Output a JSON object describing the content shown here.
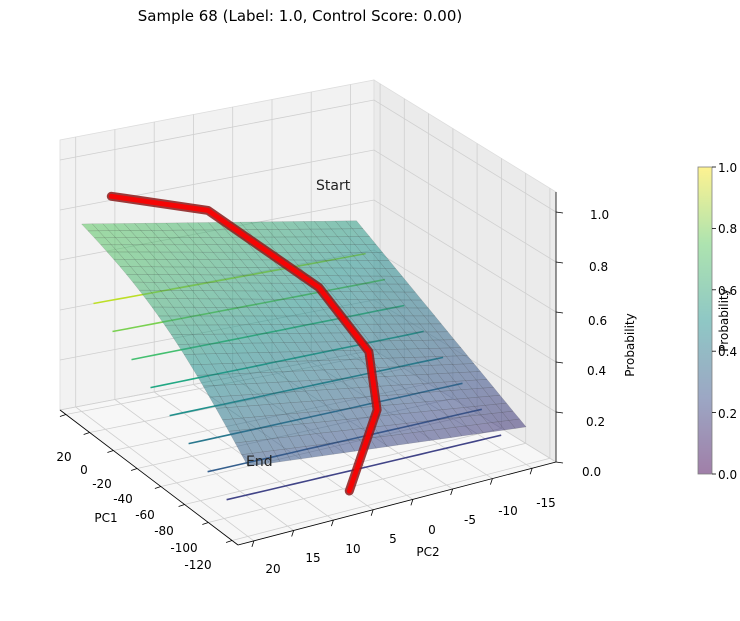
{
  "chart_data": {
    "type": "surface3d",
    "title": "Sample 68 (Label: 1.0, Control Score: 0.00)",
    "x_axis": {
      "label": "PC1",
      "ticks": [
        20,
        0,
        -20,
        -40,
        -60,
        -80,
        -100,
        -120
      ],
      "range": [
        25,
        -125
      ]
    },
    "y_axis": {
      "label": "PC2",
      "ticks": [
        20,
        15,
        10,
        5,
        0,
        -5,
        -10,
        -15
      ],
      "range": [
        22,
        -18
      ]
    },
    "z_axis": {
      "label": "Probability",
      "ticks": [
        "0.0",
        "0.2",
        "0.4",
        "0.6",
        "0.8",
        "1.0"
      ],
      "range": [
        0,
        1
      ]
    },
    "colorbar": {
      "label": "Probability",
      "ticks": [
        "0.0",
        "0.2",
        "0.4",
        "0.6",
        "0.8",
        "1.0"
      ],
      "colormap": "viridis",
      "alpha": 0.5
    },
    "surface_corners": {
      "pc1_at_20_pc2_at_20": 0.75,
      "pc1_at_20_pc2_at_-15": 0.55,
      "pc1_at_-120_pc2_at_20": 0.28,
      "pc1_at_-120_pc2_at_-15": 0.15
    },
    "trajectory": {
      "color": "#ff0000",
      "points": [
        {
          "pc1": -5,
          "pc2": 20,
          "prob": 0.95
        },
        {
          "pc1": -20,
          "pc2": 10,
          "prob": 0.88
        },
        {
          "pc1": -60,
          "pc2": 2,
          "prob": 0.65
        },
        {
          "pc1": -95,
          "pc2": 1,
          "prob": 0.5
        },
        {
          "pc1": -115,
          "pc2": 3,
          "prob": 0.35
        },
        {
          "pc1": -125,
          "pc2": 8,
          "prob": 0.1
        }
      ],
      "start_label": "Start",
      "end_label": "End"
    },
    "contour_lines": [
      {
        "level": 0.85,
        "color": "#bddf26"
      },
      {
        "level": 0.75,
        "color": "#7ad151"
      },
      {
        "level": 0.65,
        "color": "#44bf70"
      },
      {
        "level": 0.55,
        "color": "#22a884"
      },
      {
        "level": 0.45,
        "color": "#21918c"
      },
      {
        "level": 0.35,
        "color": "#2a788e"
      },
      {
        "level": 0.25,
        "color": "#355f8d"
      },
      {
        "level": 0.15,
        "color": "#414487"
      }
    ]
  }
}
